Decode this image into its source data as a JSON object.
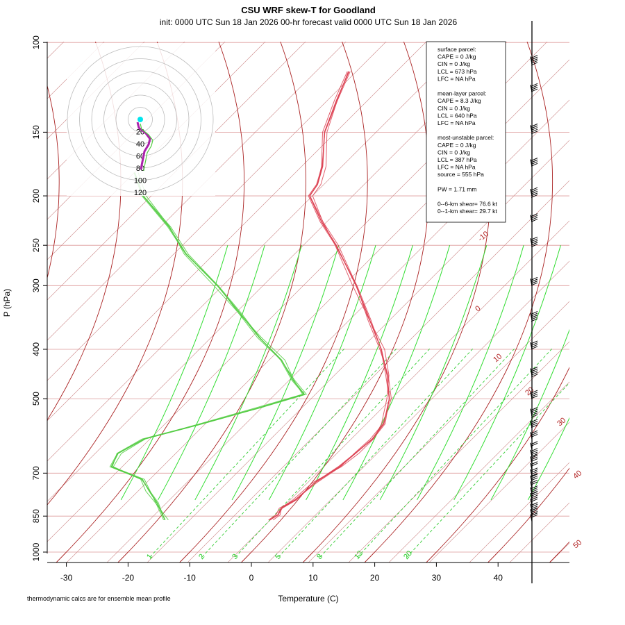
{
  "header": {
    "title": "CSU WRF skew-T for Goodland",
    "subtitle": "init: 0000 UTC Sun 18 Jan 2026     00-hr forecast valid 0000 UTC Sun 18 Jan 2026"
  },
  "footnote": "thermodynamic calcs are for ensemble mean profile",
  "info_box": {
    "lines": [
      "surface parcel:",
      "CAPE = 0 J/kg",
      "CIN = 0 J/kg",
      "LCL = 673 hPa",
      "LFC = NA hPa",
      "",
      "mean-layer parcel:",
      "CAPE = 8.3 J/kg",
      "CIN = 0 J/kg",
      "LCL = 640 hPa",
      "LFC = NA hPa",
      "",
      "most-unstable parcel:",
      "CAPE = 0 J/kg",
      "CIN = 0 J/kg",
      "LCL = 387 hPa",
      "LFC = NA hPa",
      "source = 555 hPa",
      "",
      "PW =  1.71 mm",
      "",
      "0--6-km shear= 76.6 kt",
      "0--1-km shear= 29.7 kt"
    ]
  },
  "colors": {
    "temperature": "#dd4455",
    "dewpoint": "#55cc44",
    "isotherm": "#aa2222",
    "dry_adiabat_dashed": "#cc8888",
    "moist_adiabat": "#33dd33",
    "mixing_ratio": "#33cc33",
    "isobar": "#dd9999",
    "hodograph_ring": "#bbbbbb",
    "hodograph_line": "#aa22aa",
    "hodograph_dot": "#00e5ee"
  },
  "chart_data": {
    "type": "skew-t",
    "xlabel": "Temperature (C)",
    "ylabel": "P (hPa)",
    "x_ticks": [
      -30,
      -20,
      -10,
      0,
      10,
      20,
      30,
      40
    ],
    "pressure_ticks": [
      100,
      150,
      200,
      250,
      300,
      400,
      500,
      700,
      850,
      1000
    ],
    "isotherm_labels": [
      -10,
      0,
      10,
      20,
      30,
      40,
      50
    ],
    "mixing_ratio_labels": [
      "1",
      "2",
      "3",
      "5",
      "8",
      "12",
      "20"
    ],
    "temperature_profile": [
      {
        "p": 865,
        "t": -2.0
      },
      {
        "p": 845,
        "t": -1.5
      },
      {
        "p": 820,
        "t": -2.0
      },
      {
        "p": 790,
        "t": -1.0
      },
      {
        "p": 730,
        "t": -0.5
      },
      {
        "p": 680,
        "t": 1.0
      },
      {
        "p": 640,
        "t": 1.5
      },
      {
        "p": 600,
        "t": 2.0
      },
      {
        "p": 560,
        "t": 1.5
      },
      {
        "p": 500,
        "t": -1.5
      },
      {
        "p": 450,
        "t": -5.5
      },
      {
        "p": 400,
        "t": -10.5
      },
      {
        "p": 350,
        "t": -17.0
      },
      {
        "p": 300,
        "t": -24.5
      },
      {
        "p": 250,
        "t": -34.0
      },
      {
        "p": 225,
        "t": -40.0
      },
      {
        "p": 200,
        "t": -46.0
      },
      {
        "p": 190,
        "t": -46.5
      },
      {
        "p": 175,
        "t": -48.5
      },
      {
        "p": 150,
        "t": -53.5
      },
      {
        "p": 130,
        "t": -56.5
      },
      {
        "p": 114,
        "t": -59.0
      }
    ],
    "dewpoint_profile": [
      {
        "p": 865,
        "t": -19.0
      },
      {
        "p": 800,
        "t": -23.0
      },
      {
        "p": 760,
        "t": -26.0
      },
      {
        "p": 720,
        "t": -29.0
      },
      {
        "p": 680,
        "t": -36.0
      },
      {
        "p": 640,
        "t": -37.0
      },
      {
        "p": 600,
        "t": -35.0
      },
      {
        "p": 560,
        "t": -28.0
      },
      {
        "p": 520,
        "t": -21.0
      },
      {
        "p": 490,
        "t": -16.0
      },
      {
        "p": 460,
        "t": -20.0
      },
      {
        "p": 420,
        "t": -25.0
      },
      {
        "p": 380,
        "t": -32.0
      },
      {
        "p": 340,
        "t": -39.0
      },
      {
        "p": 300,
        "t": -47.0
      },
      {
        "p": 260,
        "t": -57.0
      },
      {
        "p": 230,
        "t": -64.0
      },
      {
        "p": 200,
        "t": -73.0
      },
      {
        "p": 180,
        "t": -78.0
      }
    ],
    "hodograph_ring_labels": [
      "20",
      "40",
      "60",
      "80",
      "100",
      "120"
    ],
    "wind_barb_levels": [
      870,
      850,
      830,
      810,
      790,
      770,
      750,
      730,
      710,
      690,
      670,
      650,
      630,
      600,
      570,
      540,
      500,
      450,
      400,
      350,
      300,
      250,
      225,
      200,
      175,
      150,
      125,
      110
    ]
  }
}
